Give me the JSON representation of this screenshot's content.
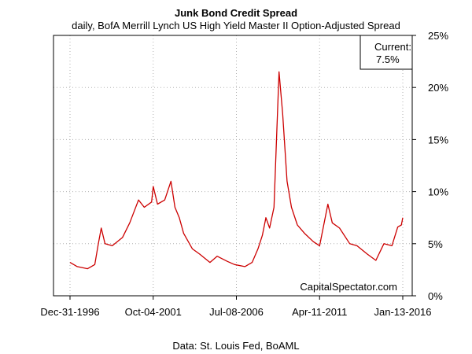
{
  "chart_data": {
    "type": "line",
    "title": "Junk Bond Credit Spread",
    "subtitle": "daily, BofA Merrill Lynch US High Yield Master II Option-Adjusted Spread",
    "source": "Data: St. Louis Fed, BoAML",
    "watermark": "CapitalSpectator.com",
    "current_box": {
      "label": "Current:",
      "value": "7.5%"
    },
    "x_ticks": [
      "Dec-31-1996",
      "Oct-04-2001",
      "Jul-08-2006",
      "Apr-11-2011",
      "Jan-13-2016"
    ],
    "y_ticks": [
      "0%",
      "5%",
      "10%",
      "15%",
      "20%",
      "25%"
    ],
    "ylim": [
      0,
      25
    ],
    "xlim": [
      "1996-12-31",
      "2016-01-13"
    ],
    "grid": true,
    "line_color": "#cc0000",
    "series": [
      {
        "x": [
          "1996-12-31",
          "1997-06-01",
          "1998-01-01",
          "1998-06-01",
          "1998-08-15",
          "1998-10-15",
          "1999-01-01",
          "1999-06-01",
          "2000-01-01",
          "2000-06-01",
          "2000-12-01",
          "2001-04-01",
          "2001-09-01",
          "2001-10-04",
          "2002-01-01",
          "2002-06-01",
          "2002-10-10",
          "2003-01-01",
          "2003-04-01",
          "2003-07-01",
          "2004-01-01",
          "2004-06-01",
          "2005-01-01",
          "2005-06-01",
          "2006-01-01",
          "2006-06-01",
          "2007-01-01",
          "2007-06-01",
          "2007-10-01",
          "2008-01-01",
          "2008-03-15",
          "2008-06-01",
          "2008-09-01",
          "2008-10-15",
          "2008-12-15",
          "2009-03-01",
          "2009-06-01",
          "2009-09-01",
          "2010-01-01",
          "2010-06-01",
          "2010-12-01",
          "2011-04-11",
          "2011-10-01",
          "2012-01-01",
          "2012-06-01",
          "2013-01-01",
          "2013-06-01",
          "2014-01-01",
          "2014-06-30",
          "2014-12-15",
          "2015-06-01",
          "2015-09-30",
          "2015-12-15",
          "2016-01-13"
        ],
        "y": [
          3.2,
          2.8,
          2.6,
          3.0,
          5.0,
          6.5,
          5.0,
          4.8,
          5.6,
          7.0,
          9.2,
          8.5,
          9.0,
          10.5,
          8.8,
          9.2,
          11.0,
          8.5,
          7.5,
          6.0,
          4.5,
          4.0,
          3.2,
          3.8,
          3.3,
          3.0,
          2.8,
          3.2,
          4.5,
          5.8,
          7.5,
          6.5,
          8.5,
          14.0,
          21.5,
          17.5,
          11.0,
          8.5,
          6.8,
          6.0,
          5.2,
          4.8,
          8.8,
          7.0,
          6.5,
          5.0,
          4.8,
          4.0,
          3.4,
          5.0,
          4.8,
          6.6,
          6.8,
          7.5
        ]
      }
    ]
  }
}
